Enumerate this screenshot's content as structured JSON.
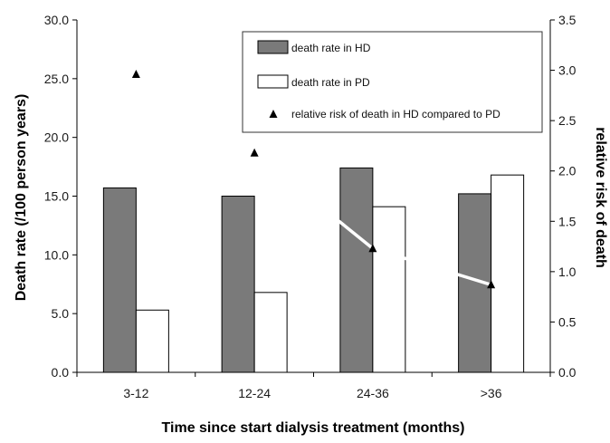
{
  "chart_data": {
    "type": "bar",
    "categories": [
      "3-12",
      "12-24",
      "24-36",
      ">36"
    ],
    "series": [
      {
        "name": "death rate in HD",
        "kind": "bar",
        "axis": "left",
        "values": [
          15.7,
          15.0,
          17.4,
          15.2
        ],
        "color": "#7a7a7a"
      },
      {
        "name": "death rate in PD",
        "kind": "bar",
        "axis": "left",
        "values": [
          5.3,
          6.8,
          14.1,
          16.8
        ],
        "color": "#ffffff"
      },
      {
        "name": "relative risk of death in HD compared to PD",
        "kind": "line",
        "axis": "right",
        "values": [
          2.96,
          2.18,
          1.23,
          0.87
        ],
        "color": "#ffffff",
        "marker": "triangle"
      }
    ],
    "xlabel": "Time since start dialysis treatment (months)",
    "ylabel": "Death rate (/100 person years)",
    "y2label": "relative risk of death",
    "ylim": [
      0,
      30
    ],
    "y2lim": [
      0,
      3.5
    ],
    "yticks": [
      "0.0",
      "5.0",
      "10.0",
      "15.0",
      "20.0",
      "25.0",
      "30.0"
    ],
    "y2ticks": [
      "0.0",
      "0.5",
      "1.0",
      "1.5",
      "2.0",
      "2.5",
      "3.0",
      "3.5"
    ],
    "legend_position": "top-right",
    "grid": false
  }
}
